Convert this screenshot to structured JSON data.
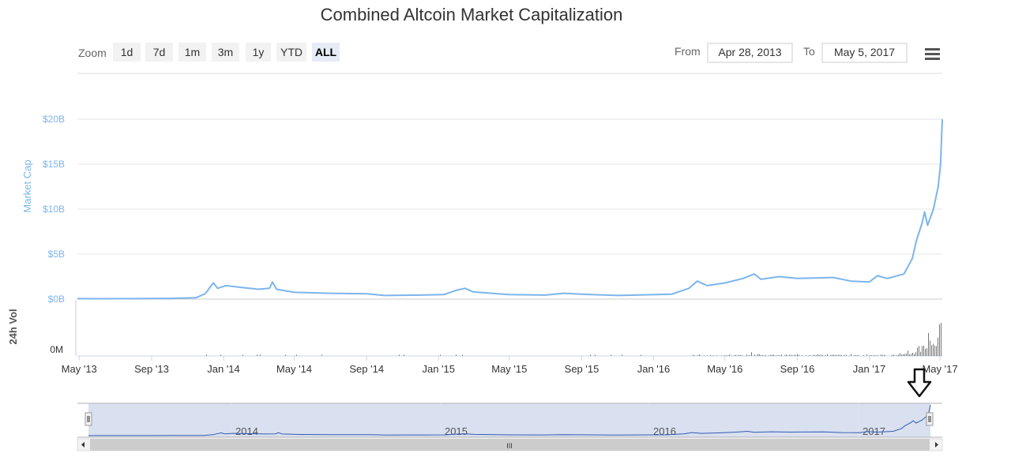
{
  "chart_data": {
    "type": "line",
    "title": "Combined Altcoin Market Capitalization",
    "range_selector": {
      "zoom_label": "Zoom",
      "buttons": [
        "1d",
        "7d",
        "1m",
        "3m",
        "1y",
        "YTD",
        "ALL"
      ],
      "active": "ALL",
      "from_label": "From",
      "from_value": "Apr 28, 2013",
      "to_label": "To",
      "to_value": "May 5, 2017"
    },
    "menu_icon": "hamburger-icon",
    "primary_axis": {
      "ylabel": "Market Cap",
      "ylim": [
        0,
        20
      ],
      "tick_labels": [
        "$0B",
        "$5B",
        "$10B",
        "$15B",
        "$20B"
      ],
      "tick_values": [
        0,
        5,
        10,
        15,
        20
      ]
    },
    "volume_axis": {
      "ylabel": "24h Vol",
      "tick_labels": [
        "0M"
      ]
    },
    "x_axis": {
      "range": [
        "2013-04-28",
        "2017-05-05"
      ],
      "ticks": [
        {
          "date": "2013-05-01",
          "label": "May '13"
        },
        {
          "date": "2013-09-01",
          "label": "Sep '13"
        },
        {
          "date": "2014-01-01",
          "label": "Jan '14"
        },
        {
          "date": "2014-05-01",
          "label": "May '14"
        },
        {
          "date": "2014-09-01",
          "label": "Sep '14"
        },
        {
          "date": "2015-01-01",
          "label": "Jan '15"
        },
        {
          "date": "2015-05-01",
          "label": "May '15"
        },
        {
          "date": "2015-09-01",
          "label": "Sep '15"
        },
        {
          "date": "2016-01-01",
          "label": "Jan '16"
        },
        {
          "date": "2016-05-01",
          "label": "May '16"
        },
        {
          "date": "2016-09-01",
          "label": "Sep '16"
        },
        {
          "date": "2017-01-01",
          "label": "Jan '17"
        },
        {
          "date": "2017-05-01",
          "label": "May '17"
        }
      ]
    },
    "series": [
      {
        "unit": "billion USD",
        "color": "#7cb5ec",
        "points": [
          [
            "2013-04-28",
            0.05
          ],
          [
            "2013-06-01",
            0.04
          ],
          [
            "2013-08-01",
            0.05
          ],
          [
            "2013-10-01",
            0.08
          ],
          [
            "2013-11-15",
            0.15
          ],
          [
            "2013-12-01",
            0.6
          ],
          [
            "2013-12-10",
            1.4
          ],
          [
            "2013-12-15",
            1.8
          ],
          [
            "2013-12-22",
            1.2
          ],
          [
            "2014-01-05",
            1.5
          ],
          [
            "2014-02-01",
            1.3
          ],
          [
            "2014-03-01",
            1.1
          ],
          [
            "2014-03-20",
            1.2
          ],
          [
            "2014-03-25",
            1.9
          ],
          [
            "2014-04-01",
            1.1
          ],
          [
            "2014-05-01",
            0.75
          ],
          [
            "2014-07-01",
            0.65
          ],
          [
            "2014-09-01",
            0.6
          ],
          [
            "2014-10-01",
            0.4
          ],
          [
            "2014-12-01",
            0.45
          ],
          [
            "2015-01-10",
            0.5
          ],
          [
            "2015-02-01",
            1.0
          ],
          [
            "2015-02-15",
            1.2
          ],
          [
            "2015-03-01",
            0.8
          ],
          [
            "2015-05-01",
            0.5
          ],
          [
            "2015-07-01",
            0.45
          ],
          [
            "2015-08-01",
            0.65
          ],
          [
            "2015-09-01",
            0.55
          ],
          [
            "2015-11-01",
            0.4
          ],
          [
            "2015-12-01",
            0.45
          ],
          [
            "2016-02-01",
            0.55
          ],
          [
            "2016-03-01",
            1.2
          ],
          [
            "2016-03-15",
            2.0
          ],
          [
            "2016-04-01",
            1.5
          ],
          [
            "2016-05-01",
            1.8
          ],
          [
            "2016-06-01",
            2.3
          ],
          [
            "2016-06-20",
            2.8
          ],
          [
            "2016-07-01",
            2.2
          ],
          [
            "2016-08-01",
            2.5
          ],
          [
            "2016-09-01",
            2.3
          ],
          [
            "2016-11-01",
            2.4
          ],
          [
            "2016-12-01",
            2.0
          ],
          [
            "2017-01-01",
            1.9
          ],
          [
            "2017-01-15",
            2.6
          ],
          [
            "2017-02-01",
            2.3
          ],
          [
            "2017-03-01",
            2.8
          ],
          [
            "2017-03-15",
            4.5
          ],
          [
            "2017-03-22",
            6.5
          ],
          [
            "2017-04-01",
            8.5
          ],
          [
            "2017-04-05",
            9.7
          ],
          [
            "2017-04-10",
            8.2
          ],
          [
            "2017-04-20",
            10.0
          ],
          [
            "2017-04-28",
            12.5
          ],
          [
            "2017-05-02",
            15.0
          ],
          [
            "2017-05-05",
            20.0
          ]
        ]
      }
    ],
    "navigator": {
      "year_labels": [
        "2014",
        "2015",
        "2016",
        "2017"
      ],
      "scrollbar_grip": "III"
    },
    "annotation": {
      "type": "arrow",
      "direction": "down",
      "points_to": "2017-05-05"
    },
    "grid": true,
    "legend": "none"
  }
}
